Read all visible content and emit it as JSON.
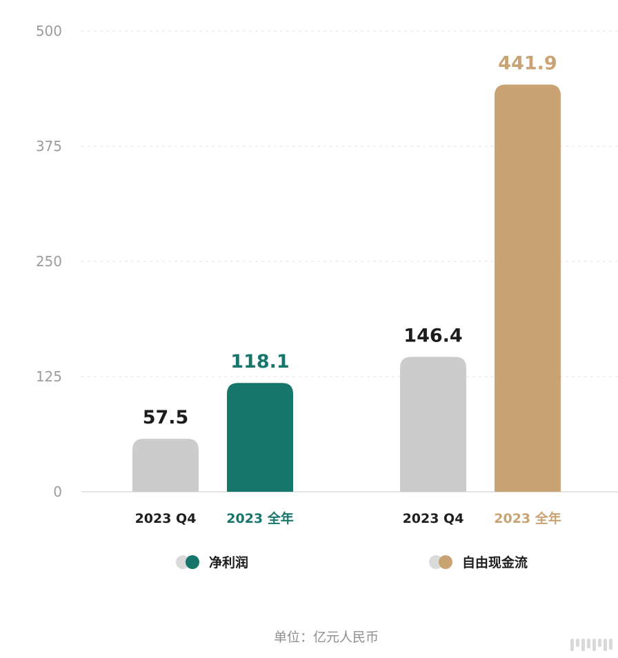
{
  "chart_data": {
    "type": "bar",
    "ylim": [
      0,
      500
    ],
    "yticks": [
      0,
      125,
      250,
      375,
      500
    ],
    "grid": true,
    "groups": [
      {
        "name": "净利润",
        "categories": [
          "2023 Q4",
          "2023 全年"
        ],
        "values": [
          57.5,
          118.1
        ],
        "value_labels": [
          "57.5",
          "118.1"
        ],
        "colors": [
          "#cccccc",
          "#17766b"
        ],
        "label_colors": [
          "#1c1c1c",
          "#17766b"
        ]
      },
      {
        "name": "自由现金流",
        "categories": [
          "2023 Q4",
          "2023 全年"
        ],
        "values": [
          146.4,
          441.9
        ],
        "value_labels": [
          "146.4",
          "441.9"
        ],
        "colors": [
          "#cccccc",
          "#c9a373"
        ],
        "label_colors": [
          "#1c1c1c",
          "#c9a373"
        ]
      }
    ],
    "unit_note": "单位：亿元人民币"
  }
}
